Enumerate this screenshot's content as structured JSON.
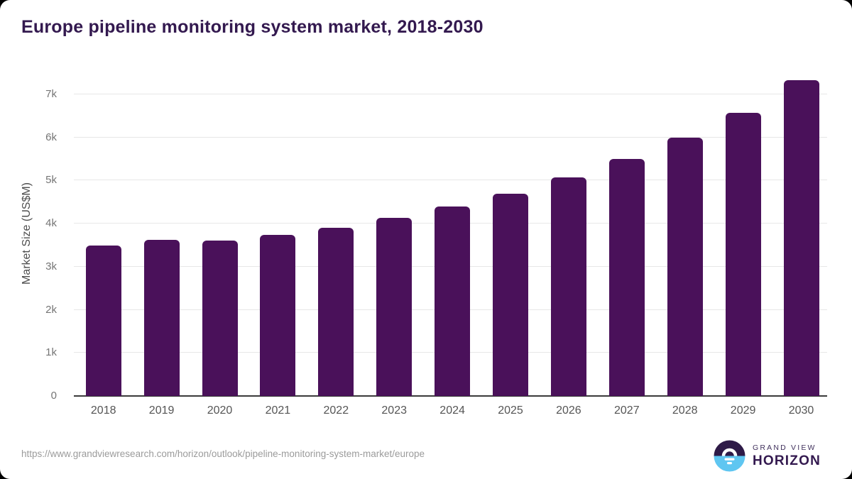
{
  "title": "Europe pipeline monitoring system market, 2018-2030",
  "source_url": "https://www.grandviewresearch.com/horizon/outlook/pipeline-monitoring-system-market/europe",
  "logo": {
    "line1": "GRAND VIEW",
    "line2": "HORIZON",
    "icon": "sunrise-horizon-icon",
    "icon_colors": {
      "sky": "#2e1a47",
      "sea": "#5fc6f1",
      "sun": "#ffffff"
    }
  },
  "colors": {
    "bar": "#4a115a",
    "title": "#33194f",
    "gridline": "#e7e7e7",
    "axis_line": "#3a3a3a",
    "y_tick": "#757575",
    "x_tick": "#555555",
    "url_text": "#9b9b9b"
  },
  "chart_data": {
    "type": "bar",
    "title": "Europe pipeline monitoring system market, 2018-2030",
    "categories": [
      "2018",
      "2019",
      "2020",
      "2021",
      "2022",
      "2023",
      "2024",
      "2025",
      "2026",
      "2027",
      "2028",
      "2029",
      "2030"
    ],
    "values": [
      3490,
      3620,
      3600,
      3740,
      3910,
      4140,
      4400,
      4700,
      5070,
      5500,
      5990,
      6570,
      7330
    ],
    "xlabel": "",
    "ylabel": "Market Size (US$M)",
    "ylim": [
      0,
      7540
    ],
    "ytick_step": 1000,
    "yticks": [
      "0",
      "1k",
      "2k",
      "3k",
      "4k",
      "5k",
      "6k",
      "7k"
    ],
    "grid": true,
    "legend": false,
    "bar_color": "#4a115a"
  }
}
